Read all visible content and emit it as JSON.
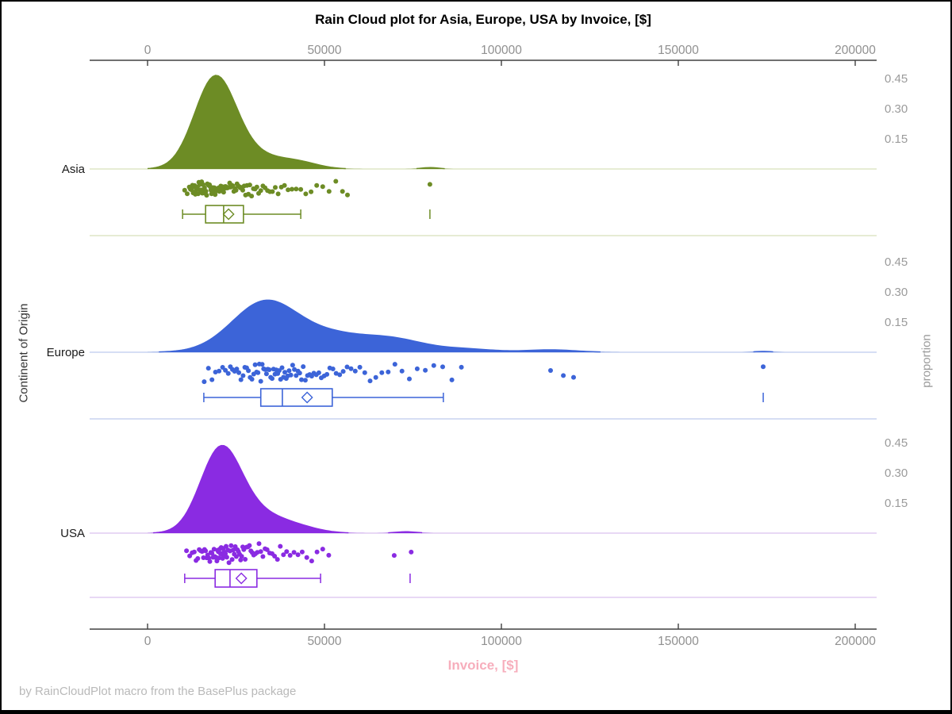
{
  "title": "Rain Cloud plot for Asia, Europe, USA by Invoice, [$]",
  "footer": "by RainCloudPlot macro from the BasePlus package",
  "x_axis": {
    "label": "Invoice, [$]",
    "label_color": "#f7aebc",
    "range": [
      0,
      206000
    ],
    "ticks": [
      {
        "value": 0,
        "label": "0"
      },
      {
        "value": 50000,
        "label": "50000"
      },
      {
        "value": 100000,
        "label": "100000"
      },
      {
        "value": 150000,
        "label": "150000"
      },
      {
        "value": 200000,
        "label": "200000"
      }
    ]
  },
  "y_axis": {
    "label": "Continent of Origin",
    "categories": [
      "Asia",
      "Europe",
      "USA"
    ]
  },
  "proportion_axis": {
    "label": "proportion",
    "ticks": [
      {
        "value": 0.15,
        "label": "0.15"
      },
      {
        "value": 0.3,
        "label": "0.30"
      },
      {
        "value": 0.45,
        "label": "0.45"
      }
    ]
  },
  "colors": {
    "axis_line": "#404040",
    "tick_label": "#909090",
    "group_label": "#1a1a1a",
    "proportion_label": "#9b9b9b",
    "title": "#000000",
    "footer": "#b9b9b9"
  },
  "chart_data": {
    "type": "raincloud (half-violin density + jittered strip points + box plot) per category",
    "x_unit": "USD",
    "groups": [
      {
        "name": "Asia",
        "color": "#6d8c25",
        "light_color": "#dde5c6",
        "density_peak": {
          "at": 19300,
          "proportion": 0.46
        },
        "density_components": [
          {
            "mu": 19000,
            "sigma": 5800,
            "h": 0.43
          },
          {
            "mu": 29000,
            "sigma": 8500,
            "h": 0.07
          },
          {
            "mu": 43000,
            "sigma": 5500,
            "h": 0.025
          },
          {
            "mu": 79800,
            "sigma": 2500,
            "h": 0.007
          }
        ],
        "box": {
          "whisker_low": 9900,
          "q1": 16400,
          "median": 21500,
          "q3": 27100,
          "whisker_high": 43300,
          "mean": 22900,
          "outliers": [
            79800
          ]
        },
        "points": [
          10500,
          11200,
          11800,
          12100,
          12400,
          12700,
          12900,
          13100,
          13300,
          13500,
          13700,
          13900,
          14100,
          14300,
          14500,
          14700,
          14900,
          15100,
          15300,
          15500,
          15700,
          15900,
          16100,
          16300,
          16500,
          16700,
          16900,
          17100,
          17300,
          17500,
          17700,
          17900,
          18100,
          18300,
          18500,
          18700,
          18900,
          19100,
          19300,
          19500,
          19700,
          19900,
          20100,
          20300,
          20500,
          20700,
          20900,
          21100,
          21300,
          21500,
          21700,
          21900,
          22100,
          22300,
          22600,
          22900,
          23200,
          23500,
          23800,
          24100,
          24400,
          24700,
          25000,
          25300,
          25600,
          25900,
          26200,
          26500,
          26900,
          27300,
          27700,
          28100,
          28500,
          28900,
          29400,
          29900,
          30400,
          30900,
          31400,
          32000,
          32600,
          33200,
          33900,
          34600,
          35300,
          36100,
          36900,
          37800,
          38700,
          39700,
          40800,
          42000,
          43300,
          44700,
          46200,
          47800,
          49500,
          51300,
          53200,
          55100,
          56500,
          79800
        ]
      },
      {
        "name": "Europe",
        "color": "#3c64d8",
        "light_color": "#c8d3f0",
        "density_peak": {
          "at": 34000,
          "proportion": 0.28
        },
        "density_components": [
          {
            "mu": 33500,
            "sigma": 9500,
            "h": 0.255
          },
          {
            "mu": 52000,
            "sigma": 8000,
            "h": 0.06
          },
          {
            "mu": 68000,
            "sigma": 9500,
            "h": 0.07
          },
          {
            "mu": 90000,
            "sigma": 8000,
            "h": 0.015
          },
          {
            "mu": 114000,
            "sigma": 7000,
            "h": 0.012
          },
          {
            "mu": 174000,
            "sigma": 2500,
            "h": 0.004
          }
        ],
        "box": {
          "whisker_low": 15900,
          "q1": 32000,
          "median": 38100,
          "q3": 52200,
          "whisker_high": 83600,
          "mean": 45100,
          "outliers": [
            174000
          ]
        },
        "points": [
          16000,
          17200,
          18200,
          19200,
          20200,
          21200,
          22000,
          22800,
          23400,
          24000,
          24600,
          25200,
          25800,
          26400,
          27000,
          27500,
          28000,
          28500,
          29000,
          29500,
          30000,
          30400,
          30800,
          31200,
          31600,
          32000,
          32400,
          32800,
          33200,
          33600,
          34000,
          34400,
          34800,
          35200,
          35600,
          36000,
          36400,
          36800,
          37200,
          37600,
          38000,
          38400,
          38800,
          39200,
          39600,
          40000,
          40500,
          41000,
          41500,
          42000,
          42500,
          43000,
          43500,
          44000,
          44600,
          45200,
          45800,
          46400,
          47000,
          47700,
          48400,
          49100,
          49900,
          50700,
          51500,
          52400,
          53300,
          54300,
          55300,
          56400,
          57500,
          58700,
          60000,
          61400,
          62900,
          64500,
          66200,
          68000,
          69900,
          71900,
          74000,
          76200,
          78500,
          80900,
          83400,
          86000,
          88700,
          113900,
          117500,
          120400,
          174000
        ]
      },
      {
        "name": "USA",
        "color": "#8a2be2",
        "light_color": "#e0cbf2",
        "density_peak": {
          "at": 21500,
          "proportion": 0.43
        },
        "density_components": [
          {
            "mu": 20500,
            "sigma": 5700,
            "h": 0.385
          },
          {
            "mu": 30000,
            "sigma": 8000,
            "h": 0.1
          },
          {
            "mu": 43000,
            "sigma": 6000,
            "h": 0.02
          },
          {
            "mu": 73000,
            "sigma": 3000,
            "h": 0.007
          }
        ],
        "box": {
          "whisker_low": 10500,
          "q1": 19100,
          "median": 23300,
          "q3": 30900,
          "whisker_high": 48900,
          "mean": 26500,
          "outliers": [
            74200
          ]
        },
        "points": [
          11000,
          11900,
          12600,
          13200,
          13700,
          14200,
          14600,
          15000,
          15400,
          15800,
          16100,
          16400,
          16700,
          17000,
          17300,
          17600,
          17900,
          18200,
          18500,
          18800,
          19000,
          19200,
          19400,
          19600,
          19800,
          20000,
          20200,
          20400,
          20600,
          20800,
          21000,
          21200,
          21400,
          21600,
          21800,
          22000,
          22200,
          22400,
          22700,
          23000,
          23300,
          23600,
          23900,
          24200,
          24500,
          24800,
          25100,
          25400,
          25700,
          26000,
          26300,
          26600,
          26900,
          27200,
          27600,
          28000,
          28400,
          28800,
          29200,
          29600,
          30000,
          30500,
          31000,
          31500,
          32000,
          32600,
          33200,
          33800,
          34500,
          35200,
          35900,
          36700,
          37500,
          38400,
          39300,
          40300,
          41400,
          42500,
          43700,
          45000,
          46400,
          47900,
          49500,
          51200,
          69700,
          74500
        ]
      }
    ]
  }
}
